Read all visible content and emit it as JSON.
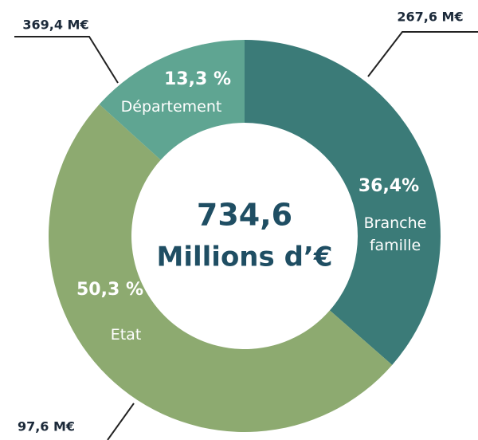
{
  "chart_data": {
    "type": "donut",
    "categories": [
      "Branche famille",
      "Etat",
      "Département"
    ],
    "values": [
      267.6,
      369.4,
      97.6
    ],
    "value_labels": [
      "267,6 M€",
      "369,4 M€",
      "97,6 M€"
    ],
    "percentages": [
      36.4,
      50.3,
      13.3
    ],
    "percentage_labels": [
      "36,4%",
      "50,3 %",
      "13,3 %"
    ],
    "colors": [
      "#3b7b78",
      "#8daa70",
      "#5fa592"
    ],
    "total": {
      "value": 734.6,
      "label": "734,6"
    },
    "center_label": "Millions d’€"
  }
}
